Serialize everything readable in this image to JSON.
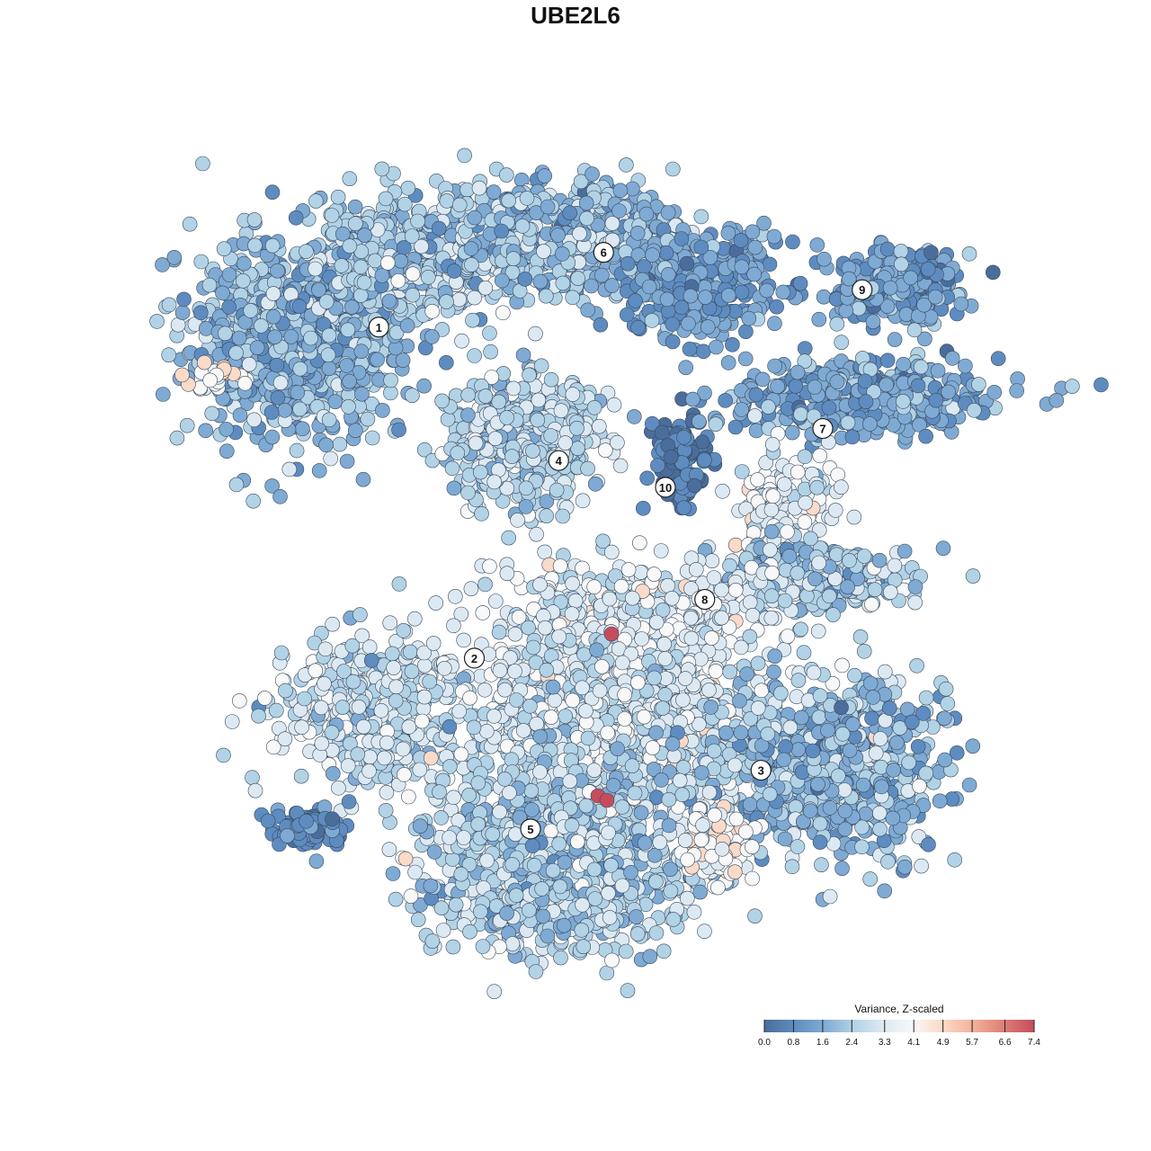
{
  "chart_data": {
    "type": "scatter",
    "title": "UBE2L6",
    "legend": {
      "title": "Variance, Z-scaled",
      "ticks": [
        "0.0",
        "0.8",
        "1.6",
        "2.4",
        "3.3",
        "4.1",
        "4.9",
        "5.7",
        "6.6",
        "7.4"
      ],
      "range": [
        0.0,
        7.4
      ],
      "placement": "bottom-right"
    },
    "colorscale": [
      "#4575b4",
      "#6a9bcc",
      "#9dc4e0",
      "#cfe3ef",
      "#f7f7f7",
      "#fbd5c4",
      "#f0a58a",
      "#d6604d",
      "#c0424f"
    ],
    "point_fill_default": "#7ba9d4",
    "clusters": [
      {
        "label": "1",
        "x": -17.5,
        "y": 22.0
      },
      {
        "label": "2",
        "x": -9.0,
        "y": -9.0
      },
      {
        "label": "3",
        "x": 16.5,
        "y": -19.5
      },
      {
        "label": "4",
        "x": -1.5,
        "y": 9.5
      },
      {
        "label": "5",
        "x": -4.0,
        "y": -25.0
      },
      {
        "label": "6",
        "x": 2.5,
        "y": 29.0
      },
      {
        "label": "7",
        "x": 22.0,
        "y": 12.5
      },
      {
        "label": "8",
        "x": 11.5,
        "y": -3.5
      },
      {
        "label": "9",
        "x": 25.5,
        "y": 25.5
      },
      {
        "label": "10",
        "x": 8.0,
        "y": 7.0
      }
    ],
    "xlim": [
      -40,
      40
    ],
    "ylim": [
      -40,
      40
    ],
    "grid": false
  }
}
